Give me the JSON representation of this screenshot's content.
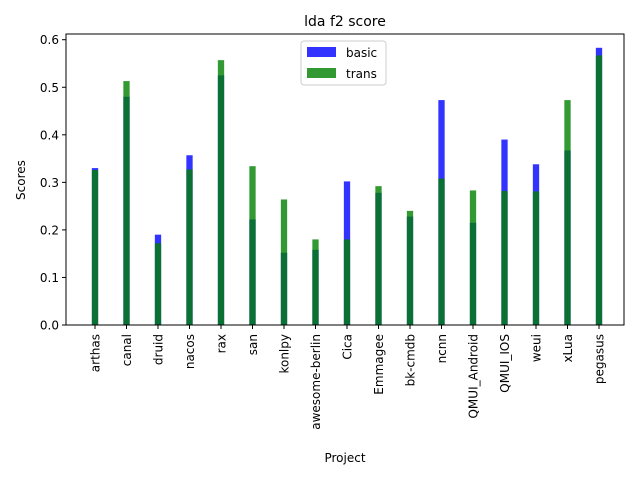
{
  "chart_data": {
    "type": "bar",
    "title": "lda f2 score",
    "xlabel": "Project",
    "ylabel": "Scores",
    "ylim": [
      0,
      0.612
    ],
    "yticks": [
      0.0,
      0.1,
      0.2,
      0.3,
      0.4,
      0.5,
      0.6
    ],
    "ytick_labels": [
      "0.0",
      "0.1",
      "0.2",
      "0.3",
      "0.4",
      "0.5",
      "0.6"
    ],
    "legend_position": "top-center",
    "grid": false,
    "categories": [
      "arthas",
      "canal",
      "druid",
      "nacos",
      "rax",
      "san",
      "konlpy",
      "awesome-berlin",
      "Cica",
      "Emmagee",
      "bk-cmdb",
      "ncnn",
      "QMUI_Android",
      "QMUI_IOS",
      "weui",
      "xLua",
      "pegasus"
    ],
    "series": [
      {
        "name": "basic",
        "color": "#0000ff",
        "alpha": 0.8,
        "values": [
          0.33,
          0.48,
          0.19,
          0.357,
          0.525,
          0.222,
          0.152,
          0.158,
          0.302,
          0.278,
          0.228,
          0.473,
          0.215,
          0.39,
          0.338,
          0.367,
          0.583
        ]
      },
      {
        "name": "trans",
        "color": "#008000",
        "alpha": 0.8,
        "values": [
          0.326,
          0.513,
          0.172,
          0.327,
          0.557,
          0.334,
          0.264,
          0.18,
          0.18,
          0.292,
          0.24,
          0.308,
          0.283,
          0.282,
          0.281,
          0.473,
          0.567
        ]
      }
    ]
  }
}
